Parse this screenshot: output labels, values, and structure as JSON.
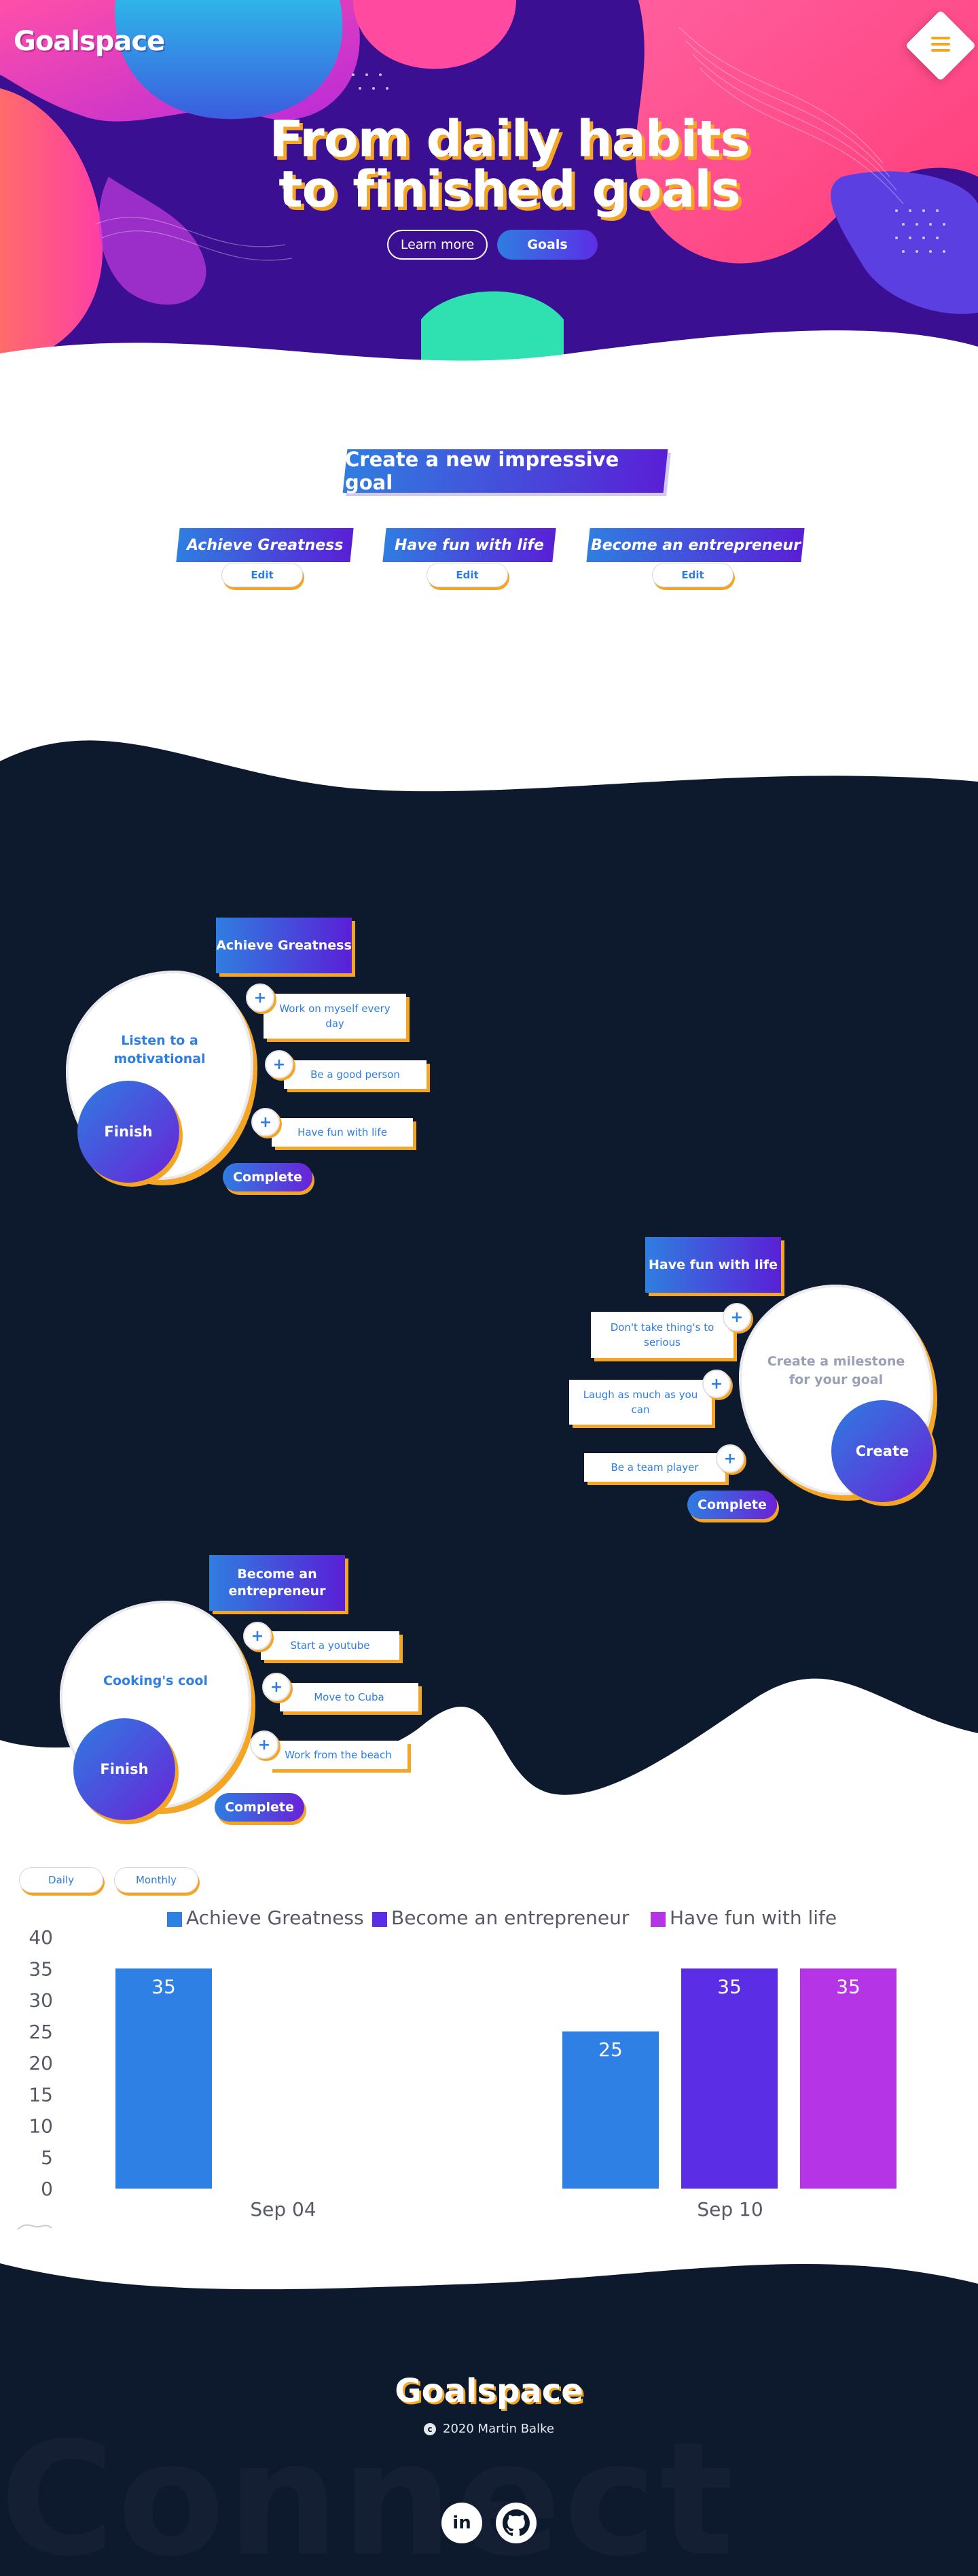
{
  "header": {
    "logo": "Goalspace",
    "title_line1": "From daily habits",
    "title_line2": "to finished goals",
    "learn_more_label": "Learn more",
    "goals_label": "Goals"
  },
  "goals_section": {
    "create_label": "Create a new impressive goal",
    "goals": [
      {
        "title": "Achieve Greatness",
        "edit_label": "Edit"
      },
      {
        "title": "Have fun with life",
        "edit_label": "Edit"
      },
      {
        "title": "Become an entrepreneur",
        "edit_label": "Edit"
      }
    ]
  },
  "goal_cards": [
    {
      "title": "Achieve Greatness",
      "blob_text": "Listen to a motivational",
      "circle_label": "Finish",
      "milestones": [
        "Work on myself every day",
        "Be a good person",
        "Have fun with life"
      ],
      "plus": "+",
      "complete_label": "Complete"
    },
    {
      "title": "Have fun with life",
      "blob_text": "Create a milestone for your goal",
      "circle_label": "Create",
      "milestones": [
        "Don't take thing's to serious",
        "Laugh as much as you can",
        "Be a team player"
      ],
      "plus": "+",
      "complete_label": "Complete"
    },
    {
      "title": "Become an entrepreneur",
      "blob_text": "Cooking's cool",
      "circle_label": "Finish",
      "milestones": [
        "Start a youtube",
        "Move to Cuba",
        "Work from the beach"
      ],
      "plus": "+",
      "complete_label": "Complete"
    }
  ],
  "chart_controls": {
    "daily_label": "Daily",
    "monthly_label": "Monthly"
  },
  "chart_data": {
    "type": "bar",
    "categories": [
      "Sep 04",
      "Sep 10"
    ],
    "series": [
      {
        "name": "Achieve Greatness",
        "values": [
          35,
          25
        ],
        "color": "#2f80e5"
      },
      {
        "name": "Become an entrepreneur",
        "values": [
          null,
          35
        ],
        "color": "#5b2ee6"
      },
      {
        "name": "Have fun with life",
        "values": [
          null,
          35
        ],
        "color": "#b534e6"
      }
    ],
    "ylim": [
      0,
      40
    ],
    "yticks": [
      0,
      5,
      10,
      15,
      20,
      25,
      30,
      35,
      40
    ],
    "legend": "top",
    "grid": false,
    "data_labels": true
  },
  "footer": {
    "logo": "Goalspace",
    "copyright_symbol": "c",
    "copyright": "2020 Martin Balke",
    "background_text": "Connect",
    "linkedin_label": "in",
    "github_icon": "github-icon",
    "accent": "#f5a524",
    "dark": "#0d1a2e"
  }
}
